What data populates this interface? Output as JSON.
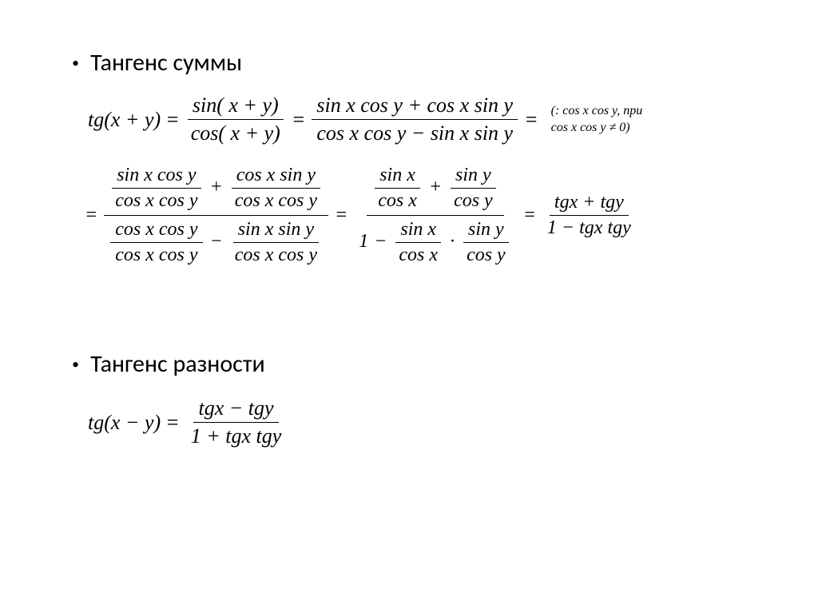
{
  "heading1": "Тангенс суммы",
  "heading2": "Тангенс разности",
  "line1": {
    "lhs": "tg(x + y)",
    "f1_num": "sin( x + y)",
    "f1_den": "cos( x + y)",
    "f2_num": "sin x cos y + cos x sin y",
    "f2_den": "cos x cos y − sin x sin y",
    "note_l1": "(: cos x cos y, при",
    "note_l2": "cos x cos y ≠ 0)"
  },
  "line2": {
    "a_num": "sin x cos y",
    "a_den": "cos x cos y",
    "b_num": "cos x sin y",
    "b_den": "cos x cos y",
    "c_num": "cos x cos y",
    "c_den": "cos x cos y",
    "d_num": "sin x sin y",
    "d_den": "cos x cos y",
    "e_num": "sin x",
    "e_den": "cos x",
    "f_num": "sin y",
    "f_den": "cos y",
    "one": "1",
    "g_num": "sin x",
    "g_den": "cos x",
    "h_num": "sin y",
    "h_den": "cos y",
    "res_num": "tgx + tgy",
    "res_den": "1 − tgx tgy"
  },
  "diff": {
    "lhs": "tg(x − y)",
    "num": "tgx − tgy",
    "den": "1 + tgx tgy"
  },
  "colors": {
    "text": "#000000",
    "background": "#ffffff"
  },
  "fonts": {
    "heading_family": "Calibri",
    "math_family": "Times New Roman",
    "heading_size_pt": 22,
    "math_size_pt": 20,
    "note_size_pt": 12
  }
}
